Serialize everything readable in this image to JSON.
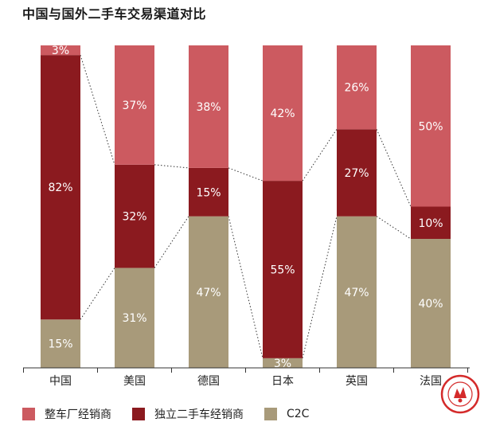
{
  "chart_data": {
    "type": "bar",
    "stacked": true,
    "title": "中国与国外二手车交易渠道对比",
    "categories": [
      "中国",
      "美国",
      "德国",
      "日本",
      "英国",
      "法国"
    ],
    "series": [
      {
        "name": "C2C",
        "color": "#a89a7a",
        "values": [
          15,
          31,
          47,
          3,
          47,
          40
        ]
      },
      {
        "name": "独立二手车经销商",
        "color": "#8b1a1f",
        "values": [
          82,
          32,
          15,
          55,
          27,
          10
        ]
      },
      {
        "name": "整车厂经销商",
        "color": "#cc5a60",
        "values": [
          3,
          37,
          38,
          42,
          26,
          50
        ]
      }
    ],
    "ylim": [
      0,
      100
    ],
    "value_suffix": "%",
    "legend": [
      "整车厂经销商",
      "独立二手车经销商",
      "C2C"
    ],
    "legend_position": "bottom"
  }
}
